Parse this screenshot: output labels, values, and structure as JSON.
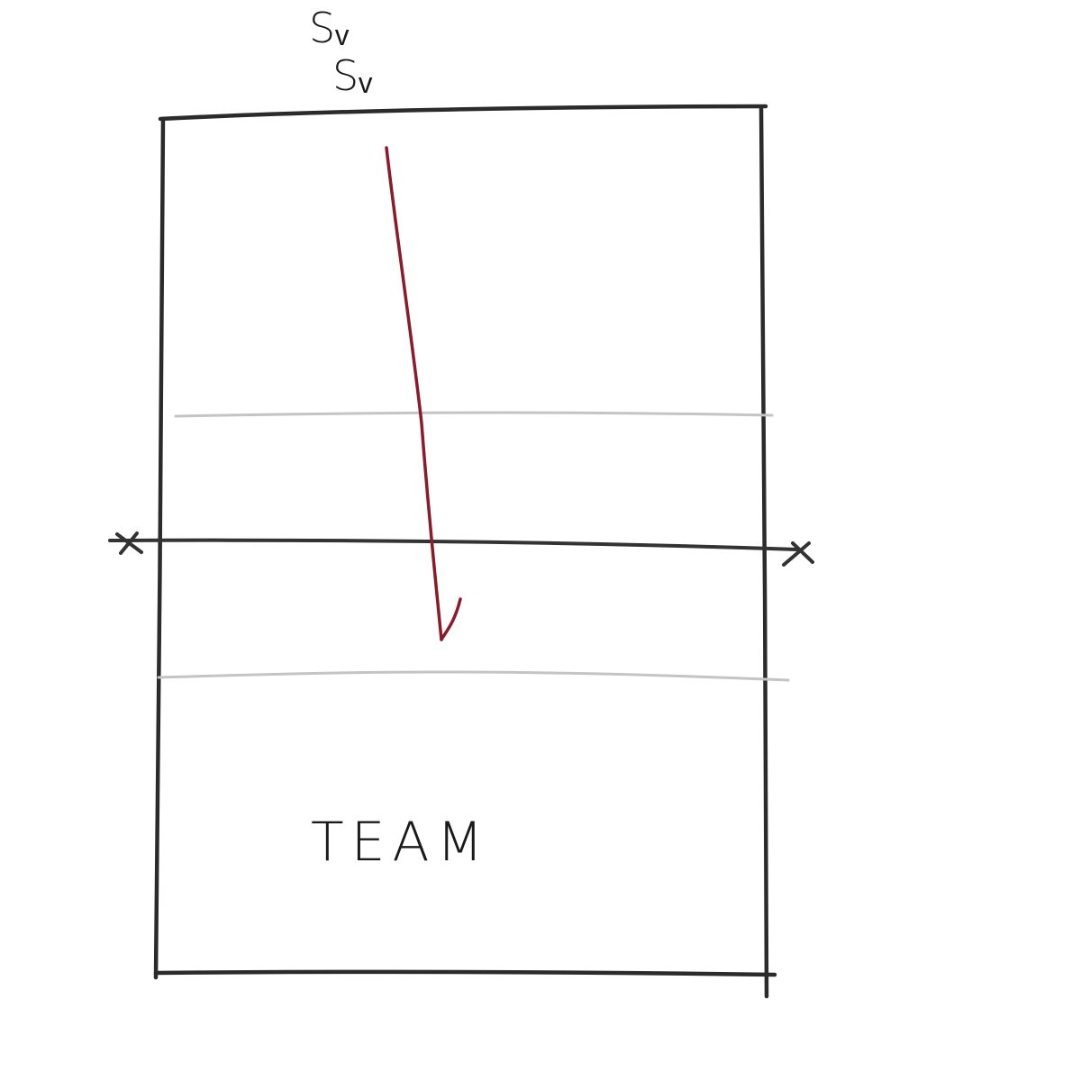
{
  "labels": {
    "server_1": "Sᵥ",
    "server_2": "Sᵥ",
    "team": "TEAM"
  },
  "colors": {
    "court_lines": "#2b2b2b",
    "attack_lines": "#c4c4c4",
    "serve_path": "#8b1a2b",
    "net": "#333333",
    "background": "#ffffff"
  }
}
